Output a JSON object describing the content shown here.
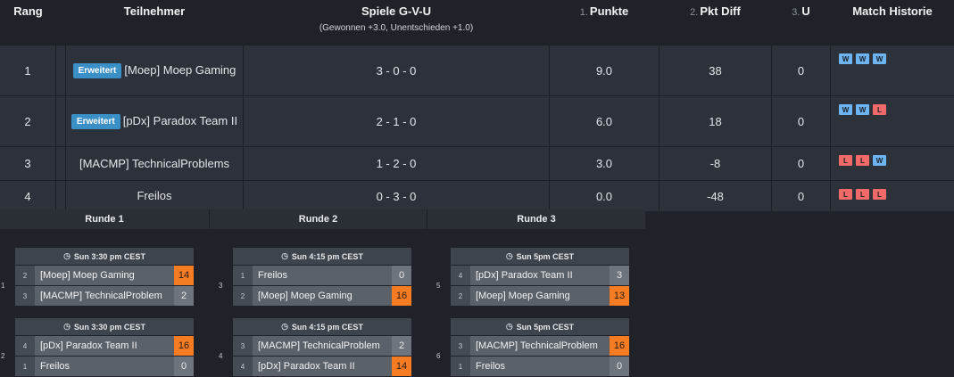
{
  "header": {
    "rank": "Rang",
    "participant": "Teilnehmer",
    "games": "Spiele G-V-U",
    "games_sub": "(Gewonnen +3.0, Unentschieden +1.0)",
    "points_num": "1.",
    "points": "Punkte",
    "diff_num": "2.",
    "diff": "Pkt Diff",
    "u_num": "3.",
    "u": "U",
    "history": "Match Historie"
  },
  "standings": [
    {
      "rank": "1",
      "badge": "Erweitert",
      "name": "[Moep] Moep Gaming",
      "record": "3 - 0 - 0",
      "points": "9.0",
      "diff": "38",
      "u": "0",
      "history": [
        "W",
        "W",
        "W"
      ]
    },
    {
      "rank": "2",
      "badge": "Erweitert",
      "name": "[pDx] Paradox Team II",
      "record": "2 - 1 - 0",
      "points": "6.0",
      "diff": "18",
      "u": "0",
      "history": [
        "W",
        "W",
        "L"
      ]
    },
    {
      "rank": "3",
      "badge": "",
      "name": "[MACMP] TechnicalProblems",
      "record": "1 - 2 - 0",
      "points": "3.0",
      "diff": "-8",
      "u": "0",
      "history": [
        "L",
        "L",
        "W"
      ]
    },
    {
      "rank": "4",
      "badge": "",
      "name": "Freilos",
      "record": "0 - 3 - 0",
      "points": "0.0",
      "diff": "-48",
      "u": "0",
      "history": [
        "L",
        "L",
        "L"
      ]
    }
  ],
  "rounds": [
    "Runde 1",
    "Runde 2",
    "Runde 3"
  ],
  "matches": [
    {
      "num": "1",
      "time": "Sun 3:30 pm CEST",
      "a": {
        "seed": "2",
        "name": "[Moep] Moep Gaming",
        "score": "14",
        "win": true
      },
      "b": {
        "seed": "3",
        "name": "[MACMP] TechnicalProblem",
        "score": "2",
        "win": false
      }
    },
    {
      "num": "2",
      "time": "Sun 3:30 pm CEST",
      "a": {
        "seed": "4",
        "name": "[pDx] Paradox Team II",
        "score": "16",
        "win": true
      },
      "b": {
        "seed": "1",
        "name": "Freilos",
        "score": "0",
        "win": false
      }
    },
    {
      "num": "3",
      "time": "Sun 4:15 pm CEST",
      "a": {
        "seed": "1",
        "name": "Freilos",
        "score": "0",
        "win": false
      },
      "b": {
        "seed": "2",
        "name": "[Moep] Moep Gaming",
        "score": "16",
        "win": true
      }
    },
    {
      "num": "4",
      "time": "Sun 4:15 pm CEST",
      "a": {
        "seed": "3",
        "name": "[MACMP] TechnicalProblem",
        "score": "2",
        "win": false
      },
      "b": {
        "seed": "4",
        "name": "[pDx] Paradox Team II",
        "score": "14",
        "win": true
      }
    },
    {
      "num": "5",
      "time": "Sun 5pm CEST",
      "a": {
        "seed": "4",
        "name": "[pDx] Paradox Team II",
        "score": "3",
        "win": false
      },
      "b": {
        "seed": "2",
        "name": "[Moep] Moep Gaming",
        "score": "13",
        "win": true
      }
    },
    {
      "num": "6",
      "time": "Sun 5pm CEST",
      "a": {
        "seed": "3",
        "name": "[MACMP] TechnicalProblem",
        "score": "16",
        "win": true
      },
      "b": {
        "seed": "1",
        "name": "Freilos",
        "score": "0",
        "win": false
      }
    }
  ],
  "icons": {
    "clock": "clock-icon"
  },
  "colors": {
    "win_chip": "#6cb4f2",
    "loss_chip": "#f06a6a",
    "badge": "#3a8fc7",
    "winner_score": "#f57c22"
  }
}
